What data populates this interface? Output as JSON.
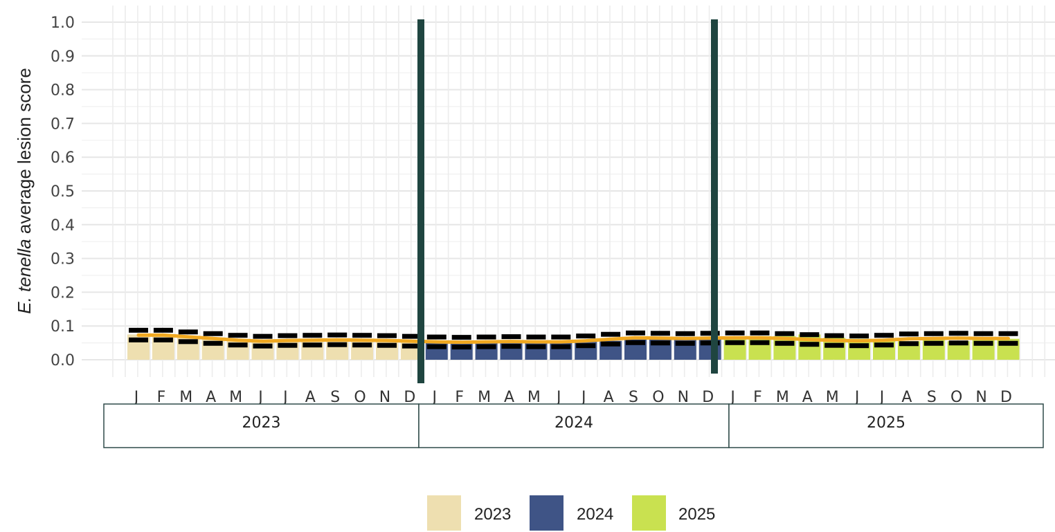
{
  "chart_data": {
    "type": "bar",
    "ylabel_italic": "E. tenella",
    "ylabel_rest": " average lesion score",
    "xlabel": "",
    "ylim": [
      0,
      1.0
    ],
    "yticks": [
      "0.0",
      "0.1",
      "0.2",
      "0.3",
      "0.4",
      "0.5",
      "0.6",
      "0.7",
      "0.8",
      "0.9",
      "1.0"
    ],
    "ytick_values": [
      0,
      0.1,
      0.2,
      0.3,
      0.4,
      0.5,
      0.6,
      0.7,
      0.8,
      0.9,
      1.0
    ],
    "month_labels": [
      "J",
      "F",
      "M",
      "A",
      "M",
      "J",
      "J",
      "A",
      "S",
      "O",
      "N",
      "D"
    ],
    "years": [
      "2023",
      "2024",
      "2025"
    ],
    "colors": {
      "2023": "#EEDFB0",
      "2024": "#3F5486",
      "2025": "#C9E150",
      "trend": "#F0A820",
      "divider": "#1F4540",
      "interval": "#000000"
    },
    "legend": [
      "2023",
      "2024",
      "2025"
    ],
    "legend_position": "bottom",
    "grid": true,
    "series": [
      {
        "name": "2023",
        "values": [
          0.075,
          0.075,
          0.07,
          0.065,
          0.06,
          0.055,
          0.055,
          0.058,
          0.06,
          0.06,
          0.06,
          0.058
        ]
      },
      {
        "name": "2024",
        "values": [
          0.055,
          0.052,
          0.052,
          0.054,
          0.054,
          0.053,
          0.053,
          0.056,
          0.06,
          0.065,
          0.068,
          0.065
        ]
      },
      {
        "name": "2025",
        "values": [
          0.068,
          0.07,
          0.07,
          0.075,
          0.065,
          0.062,
          0.058,
          0.055,
          0.06,
          0.055,
          0.065,
          0.062
        ]
      }
    ],
    "interval_marks": [
      [
        0.073,
        0.073,
        0.068,
        0.063,
        0.058,
        0.055,
        0.057,
        0.058,
        0.059,
        0.058,
        0.057,
        0.055
      ],
      [
        0.053,
        0.052,
        0.053,
        0.054,
        0.053,
        0.053,
        0.056,
        0.061,
        0.065,
        0.064,
        0.063,
        0.064
      ],
      [
        0.065,
        0.065,
        0.063,
        0.06,
        0.057,
        0.056,
        0.058,
        0.062,
        0.063,
        0.064,
        0.063,
        0.063
      ]
    ],
    "trend": [
      0.073,
      0.073,
      0.068,
      0.063,
      0.058,
      0.055,
      0.057,
      0.058,
      0.059,
      0.058,
      0.057,
      0.055,
      0.053,
      0.052,
      0.053,
      0.054,
      0.053,
      0.053,
      0.056,
      0.061,
      0.065,
      0.064,
      0.063,
      0.064,
      0.065,
      0.065,
      0.063,
      0.06,
      0.057,
      0.056,
      0.058,
      0.062,
      0.063,
      0.064,
      0.063,
      0.063
    ]
  }
}
